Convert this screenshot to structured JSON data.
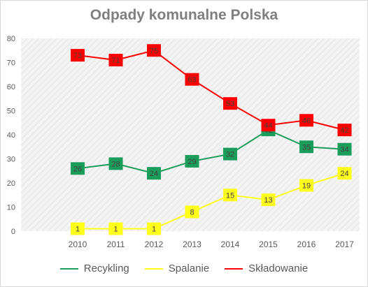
{
  "chart_data": {
    "type": "line",
    "title": "Odpady komunalne Polska",
    "x": [
      "2010",
      "2011",
      "2012",
      "2013",
      "2014",
      "2015",
      "2016",
      "2017"
    ],
    "ylim": [
      0,
      80
    ],
    "yticks": [
      0,
      10,
      20,
      30,
      40,
      50,
      60,
      70,
      80
    ],
    "grid": false,
    "legend_position": "bottom",
    "series": [
      {
        "name": "Recykling",
        "color": "#1a9c5a",
        "values": [
          26,
          28,
          24,
          29,
          32,
          42,
          35,
          34
        ]
      },
      {
        "name": "Spalanie",
        "color": "#ffff1a",
        "values": [
          1,
          1,
          1,
          8,
          15,
          13,
          19,
          24
        ]
      },
      {
        "name": "Składowanie",
        "color": "#ff0000",
        "values": [
          73,
          71,
          75,
          63,
          53,
          44,
          46,
          42
        ]
      }
    ]
  }
}
